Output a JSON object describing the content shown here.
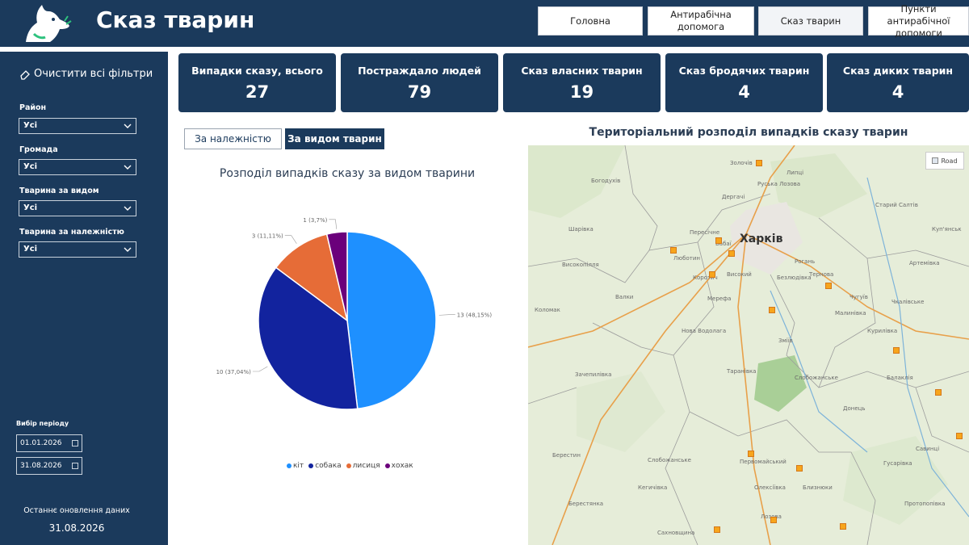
{
  "header": {
    "title": "Сказ тварин",
    "nav": [
      {
        "label": "Головна"
      },
      {
        "label": "Антирабічна допомога"
      },
      {
        "label": "Сказ тварин"
      },
      {
        "label": "Пункти антирабічної допомоги"
      }
    ]
  },
  "sidebar": {
    "clear_filters": "Очистити всі фільтри",
    "filters": [
      {
        "label": "Район",
        "value": "Усі"
      },
      {
        "label": "Громада",
        "value": "Усі"
      },
      {
        "label": "Тварина за видом",
        "value": "Усі"
      },
      {
        "label": "Тварина за належністю",
        "value": "Усі"
      }
    ],
    "period_label": "Вибір періоду",
    "date_from": "01.01.2026",
    "date_to": "31.08.2026",
    "update_label": "Останнє оновлення даних",
    "update_date": "31.08.2026"
  },
  "kpis": [
    {
      "label": "Випадки сказу, всього",
      "value": "27"
    },
    {
      "label": "Постраждало людей",
      "value": "79"
    },
    {
      "label": "Сказ власних тварин",
      "value": "19"
    },
    {
      "label": "Сказ бродячих тварин",
      "value": "4"
    },
    {
      "label": "Сказ диких тварин",
      "value": "4"
    }
  ],
  "toggles": {
    "by_ownership": "За належністю",
    "by_species": "За видом тварин"
  },
  "chart_data": {
    "type": "pie",
    "title": "Розподіл випадків сказу за видом тварини",
    "categories": [
      "кіт",
      "собака",
      "лисиця",
      "хохак"
    ],
    "values": [
      13,
      10,
      3,
      1
    ],
    "data_labels": [
      "13 (48,15%)",
      "10 (37,04%)",
      "3 (11,11%)",
      "1 (3,7%)"
    ],
    "colors": [
      "#1e90ff",
      "#12239e",
      "#e66c37",
      "#6b007b"
    ],
    "legend_position": "bottom"
  },
  "map": {
    "title": "Територіальний розподіл випадків сказу тварин",
    "road_label": "Road",
    "main_city": "Харків",
    "places": [
      "Золочів",
      "Богодухів",
      "Дергачі",
      "Руська Лозова",
      "Липці",
      "Старий Салтів",
      "Шарівка",
      "Пересічне",
      "Люботин",
      "Мерефа",
      "Валки",
      "Нова Водолага",
      "Високопілля",
      "Коломак",
      "Артемівка",
      "Чкалівське",
      "Чугуїв",
      "Малинівка",
      "Зміїв",
      "Слобожанське",
      "Таранівка",
      "Балаклія",
      "Донець",
      "Савинці",
      "Берестин",
      "Кегичівка",
      "Зачепилівка",
      "Сахновщина",
      "Лозова",
      "Первомайський",
      "Близнюки",
      "Протопопівка",
      "Гусарівка",
      "Слобожанське",
      "Олексіївка",
      "Берестянка",
      "Курилівка",
      "Бабаї",
      "Високий",
      "Коротич",
      "Рогань",
      "Безлюдівка",
      "Тернова",
      "Куп'янськ"
    ]
  }
}
